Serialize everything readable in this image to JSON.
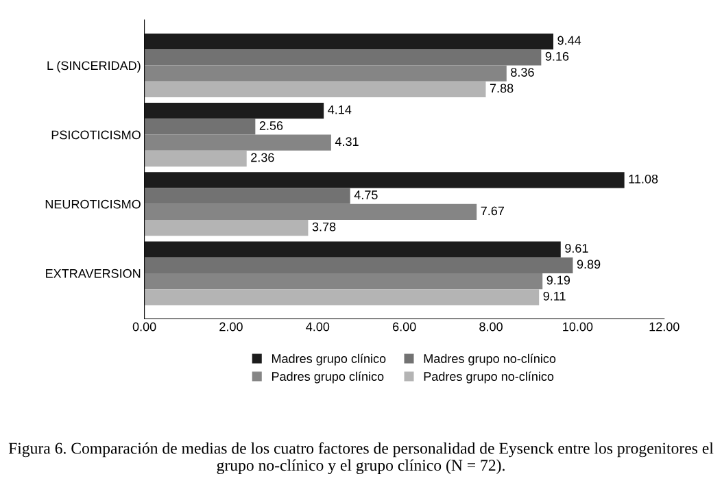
{
  "chart_data": {
    "type": "bar",
    "orientation": "horizontal",
    "title": "Figura 6. Comparación de medias de los cuatro factores de personalidad de Eysenck entre los progenitores el grupo no-clínico y el grupo clínico (N = 72).",
    "categories": [
      "L (SINCERIDAD)",
      "PSICOTICISMO",
      "NEUROTICISMO",
      "EXTRAVERSION"
    ],
    "series": [
      {
        "name": "Madres grupo clínico",
        "color": "#1c1c1c",
        "values": [
          9.44,
          4.14,
          11.08,
          9.61
        ]
      },
      {
        "name": "Madres grupo no-clínico",
        "color": "#727272",
        "values": [
          9.16,
          2.56,
          4.75,
          9.89
        ]
      },
      {
        "name": "Padres grupo clínico",
        "color": "#858585",
        "values": [
          8.36,
          4.31,
          7.67,
          9.19
        ]
      },
      {
        "name": "Padres grupo no-clínico",
        "color": "#b4b4b4",
        "values": [
          7.88,
          2.36,
          3.78,
          9.11
        ]
      }
    ],
    "xlim": [
      0,
      12
    ],
    "xticks": [
      {
        "value": 0,
        "label": "0.00"
      },
      {
        "value": 2,
        "label": "2.00"
      },
      {
        "value": 4,
        "label": "4.00"
      },
      {
        "value": 6,
        "label": "6.00"
      },
      {
        "value": 8,
        "label": "8.00"
      },
      {
        "value": 10,
        "label": "10.00"
      },
      {
        "value": 12,
        "label": "12.00"
      }
    ],
    "data_labels": true,
    "legend": "bottom",
    "grid": false
  }
}
